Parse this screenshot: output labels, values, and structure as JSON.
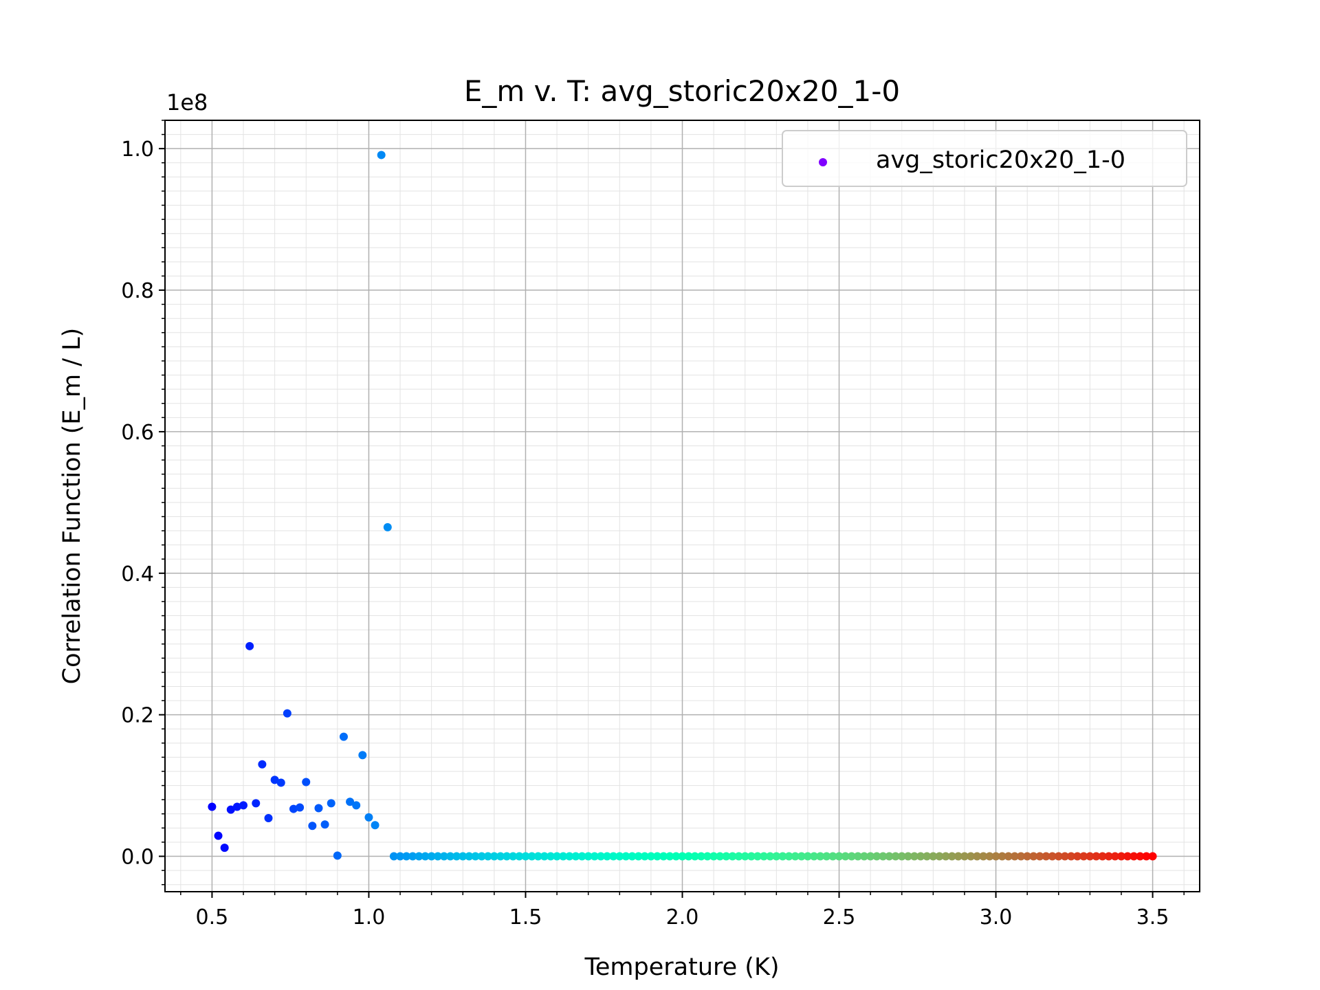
{
  "chart_data": {
    "type": "scatter",
    "title": "E_m v. T: avg_storic20x20_1-0",
    "xlabel": "Temperature (K)",
    "ylabel": "Correlation Function (E_m / L)",
    "y_offset_label": "1e8",
    "xlim": [
      0.35,
      3.65
    ],
    "ylim": [
      -0.05,
      1.04
    ],
    "x_ticks": [
      0.5,
      1.0,
      1.5,
      2.0,
      2.5,
      3.0,
      3.5
    ],
    "x_tick_labels": [
      "0.5",
      "1.0",
      "1.5",
      "2.0",
      "2.5",
      "3.0",
      "3.5"
    ],
    "y_ticks": [
      0.0,
      0.2,
      0.4,
      0.6,
      0.8,
      1.0
    ],
    "y_tick_labels": [
      "0.0",
      "0.2",
      "0.4",
      "0.6",
      "0.8",
      "1.0"
    ],
    "grid": true,
    "minor_grid": true,
    "legend_position": "top-right",
    "colormap": "rainbow",
    "series": [
      {
        "name": "avg_storic20x20_1-0",
        "x_start": 0.5,
        "x_end": 3.5,
        "x_step": 0.02,
        "y_scattered": [
          0.07,
          0.029,
          0.012,
          0.066,
          0.07,
          0.072,
          0.297,
          0.075,
          0.13,
          0.054,
          0.108,
          0.104,
          0.202,
          0.067,
          0.069,
          0.105,
          0.043,
          0.068,
          0.045,
          0.075,
          0.001,
          0.169,
          0.077,
          0.072,
          0.143,
          0.055,
          0.044,
          0.991,
          0.465
        ],
        "y_remaining": 0.0
      }
    ]
  }
}
